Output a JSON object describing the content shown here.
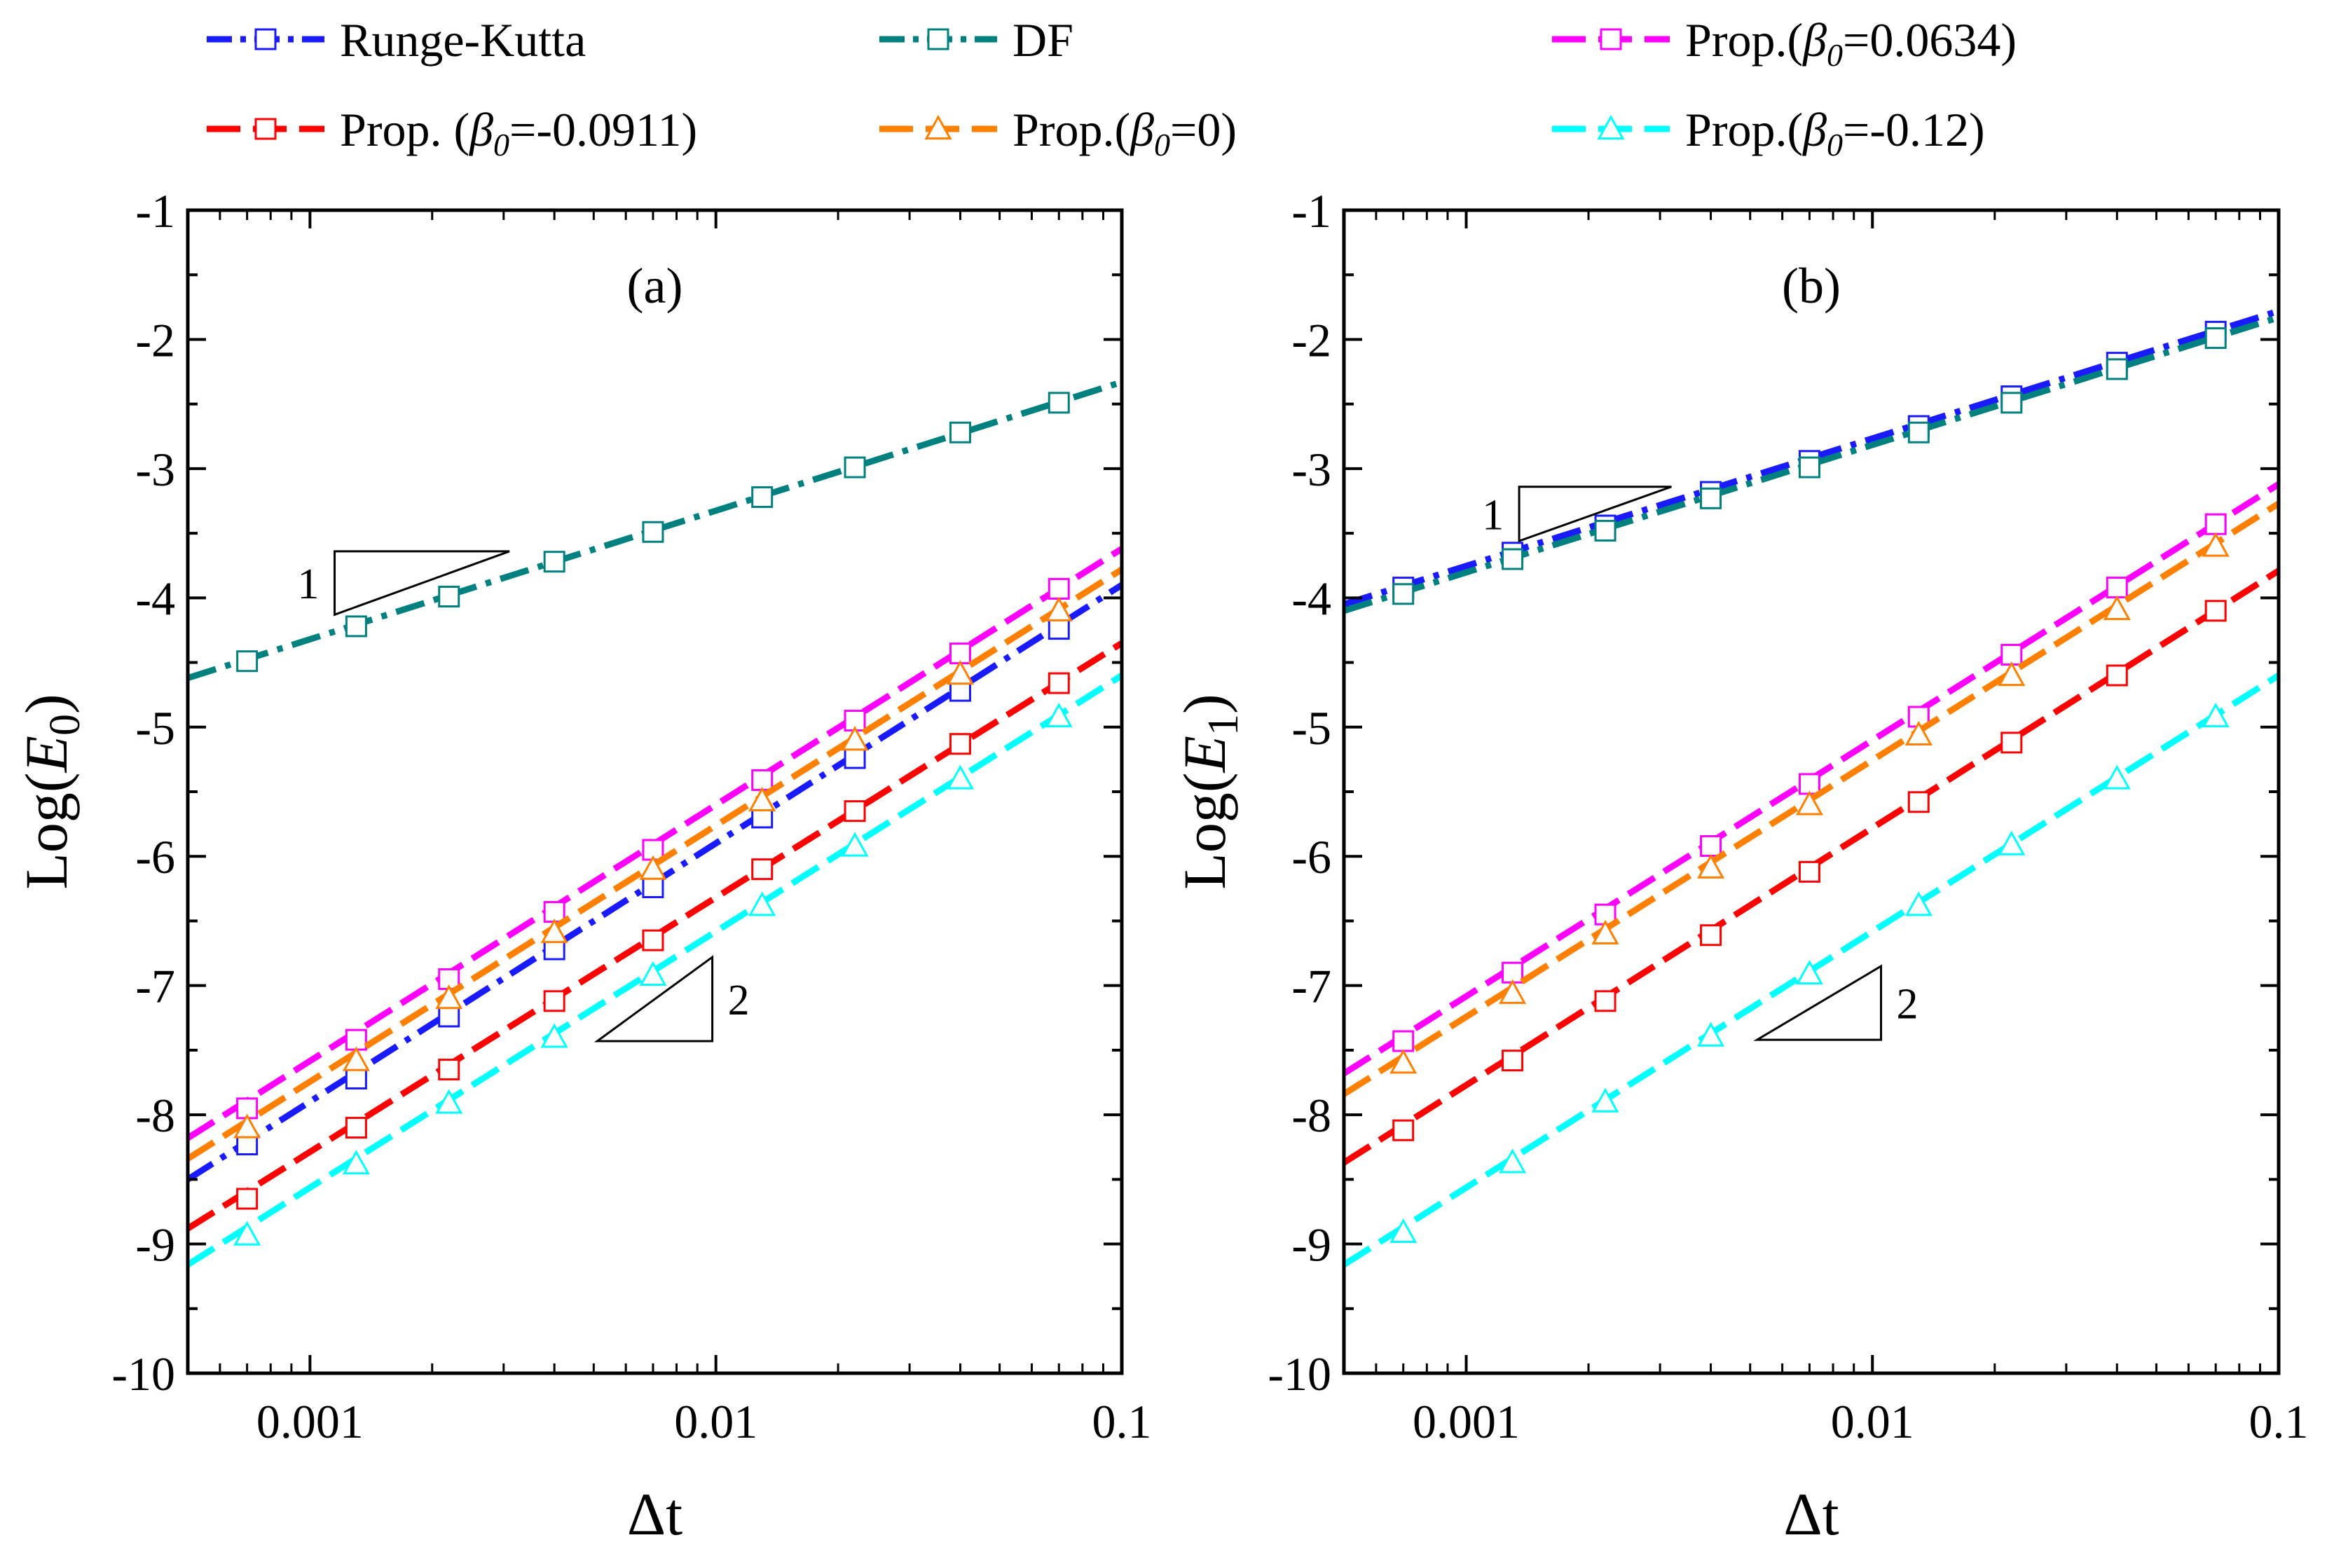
{
  "legend": [
    {
      "label": "Runge-Kutta",
      "color": "#1a1aff",
      "marker": "square",
      "dash": "dashdot"
    },
    {
      "label": "DF",
      "color": "#00807f",
      "marker": "square",
      "dash": "dashdot"
    },
    {
      "label": "Prop.(β0=0.0634)",
      "prefix": "Prop.(",
      "beta": "β",
      "sub": "0",
      "suffix": "=0.0634)",
      "color": "#ff00ff",
      "marker": "square",
      "dash": "dash"
    },
    {
      "label": "Prop. (β0=-0.0911)",
      "prefix": "Prop. (",
      "beta": "β",
      "sub": "0",
      "suffix": "=-0.0911)",
      "color": "#ff0000",
      "marker": "square",
      "dash": "dash"
    },
    {
      "label": "Prop.(β0=0)",
      "prefix": "Prop.(",
      "beta": "β",
      "sub": "0",
      "suffix": "=0)",
      "color": "#ff7f00",
      "marker": "triangle",
      "dash": "dash"
    },
    {
      "label": "Prop.(β0=-0.12)",
      "prefix": "Prop.(",
      "beta": "β",
      "sub": "0",
      "suffix": "=-0.12)",
      "color": "#00ffff",
      "marker": "triangle",
      "dash": "dash"
    }
  ],
  "chart_data": [
    {
      "type": "line",
      "panel_label": "(a)",
      "xlabel": "Δt",
      "ylabel_prefix": "Log(",
      "ylabel_var": "E",
      "ylabel_sub": "0",
      "ylabel_suffix": ")",
      "xscale": "log",
      "xlim": [
        0.0005,
        0.1
      ],
      "ylim": [
        -10,
        -1
      ],
      "xticks": [
        0.001,
        0.01,
        0.1
      ],
      "xtick_labels": [
        "0.001",
        "0.01",
        "0.1"
      ],
      "yticks": [
        -10,
        -9,
        -8,
        -7,
        -6,
        -5,
        -4,
        -3,
        -2,
        -1
      ],
      "ytick_labels": [
        "-10",
        "-9",
        "-8",
        "-7",
        "-6",
        "-5",
        "-4",
        "-3",
        "-2",
        "-1"
      ],
      "x": [
        0.0007,
        0.0013,
        0.0022,
        0.004,
        0.007,
        0.013,
        0.022,
        0.04,
        0.07
      ],
      "series": [
        {
          "name": "Runge-Kutta",
          "values": [
            -8.23,
            -7.72,
            -7.24,
            -6.72,
            -6.24,
            -5.7,
            -5.24,
            -4.72,
            -4.24
          ],
          "line": [
            -8.5,
            -3.9
          ]
        },
        {
          "name": "DF",
          "values": [
            -4.49,
            -4.22,
            -3.99,
            -3.72,
            -3.49,
            -3.22,
            -2.99,
            -2.72,
            -2.49
          ],
          "line": [
            -4.62,
            -2.33
          ]
        },
        {
          "name": "Prop.(β0=0.0634)",
          "values": [
            -7.95,
            -7.42,
            -6.95,
            -6.43,
            -5.95,
            -5.41,
            -4.95,
            -4.43,
            -3.93
          ],
          "line": [
            -8.18,
            -3.62
          ]
        },
        {
          "name": "Prop. (β0=-0.0911)",
          "values": [
            -8.65,
            -8.1,
            -7.65,
            -7.12,
            -6.65,
            -6.1,
            -5.65,
            -5.13,
            -4.66
          ],
          "line": [
            -8.88,
            -4.35
          ]
        },
        {
          "name": "Prop.(β0=0)",
          "values": [
            -8.1,
            -7.58,
            -7.1,
            -6.59,
            -6.1,
            -5.57,
            -5.1,
            -4.59,
            -4.1
          ],
          "line": [
            -8.34,
            -3.78
          ]
        },
        {
          "name": "Prop.(β0=-0.12)",
          "values": [
            -8.93,
            -8.38,
            -7.91,
            -7.4,
            -6.92,
            -6.38,
            -5.92,
            -5.4,
            -4.92
          ],
          "line": [
            -9.16,
            -4.6
          ]
        }
      ],
      "slope_annotations": [
        {
          "label": "1",
          "x1": 0.00115,
          "x2": 0.0031,
          "y_base": -4.13,
          "y_top": -3.64,
          "orientation": "upper"
        },
        {
          "label": "2",
          "x1": 0.0051,
          "x2": 0.0098,
          "y_base": -7.43,
          "y_top": -6.78,
          "orientation": "lower"
        }
      ]
    },
    {
      "type": "line",
      "panel_label": "(b)",
      "xlabel": "Δt",
      "ylabel_prefix": "Log(",
      "ylabel_var": "E",
      "ylabel_sub": "1",
      "ylabel_suffix": ")",
      "xscale": "log",
      "xlim": [
        0.0005,
        0.1
      ],
      "ylim": [
        -10,
        -1
      ],
      "xticks": [
        0.001,
        0.01,
        0.1
      ],
      "xtick_labels": [
        "0.001",
        "0.01",
        "0.1"
      ],
      "yticks": [
        -10,
        -9,
        -8,
        -7,
        -6,
        -5,
        -4,
        -3,
        -2,
        -1
      ],
      "ytick_labels": [
        "-10",
        "-9",
        "-8",
        "-7",
        "-6",
        "-5",
        "-4",
        "-3",
        "-2",
        "-1"
      ],
      "x": [
        0.0007,
        0.0013,
        0.0022,
        0.004,
        0.007,
        0.013,
        0.022,
        0.04,
        0.07
      ],
      "series": [
        {
          "name": "Runge-Kutta",
          "values": [
            -3.92,
            -3.65,
            -3.44,
            -3.18,
            -2.94,
            -2.67,
            -2.44,
            -2.18,
            -1.94
          ],
          "line": [
            -4.05,
            -1.78
          ]
        },
        {
          "name": "DF",
          "values": [
            -3.97,
            -3.7,
            -3.48,
            -3.23,
            -2.99,
            -2.72,
            -2.49,
            -2.23,
            -1.99
          ],
          "line": [
            -4.1,
            -1.83
          ]
        },
        {
          "name": "Prop.(β0=0.0634)",
          "values": [
            -7.43,
            -6.9,
            -6.45,
            -5.92,
            -5.44,
            -4.92,
            -4.44,
            -3.92,
            -3.43
          ],
          "line": [
            -7.68,
            -3.12
          ]
        },
        {
          "name": "Prop. (β0=-0.0911)",
          "values": [
            -8.12,
            -7.58,
            -7.12,
            -6.61,
            -6.12,
            -5.58,
            -5.12,
            -4.6,
            -4.1
          ],
          "line": [
            -8.37,
            -3.79
          ]
        },
        {
          "name": "Prop.(β0=0)",
          "values": [
            -7.6,
            -7.06,
            -6.6,
            -6.09,
            -5.6,
            -5.06,
            -4.6,
            -4.09,
            -3.6
          ],
          "line": [
            -7.84,
            -3.27
          ]
        },
        {
          "name": "Prop.(β0=-0.12)",
          "values": [
            -8.91,
            -8.37,
            -7.9,
            -7.39,
            -6.91,
            -6.38,
            -5.91,
            -5.4,
            -4.92
          ],
          "line": [
            -9.16,
            -4.6
          ]
        }
      ],
      "slope_annotations": [
        {
          "label": "1",
          "x1": 0.00135,
          "x2": 0.0032,
          "y_base": -3.56,
          "y_top": -3.14,
          "orientation": "upper"
        },
        {
          "label": "2",
          "x1": 0.0052,
          "x2": 0.0105,
          "y_base": -7.42,
          "y_top": -6.85,
          "orientation": "lower"
        }
      ]
    }
  ]
}
